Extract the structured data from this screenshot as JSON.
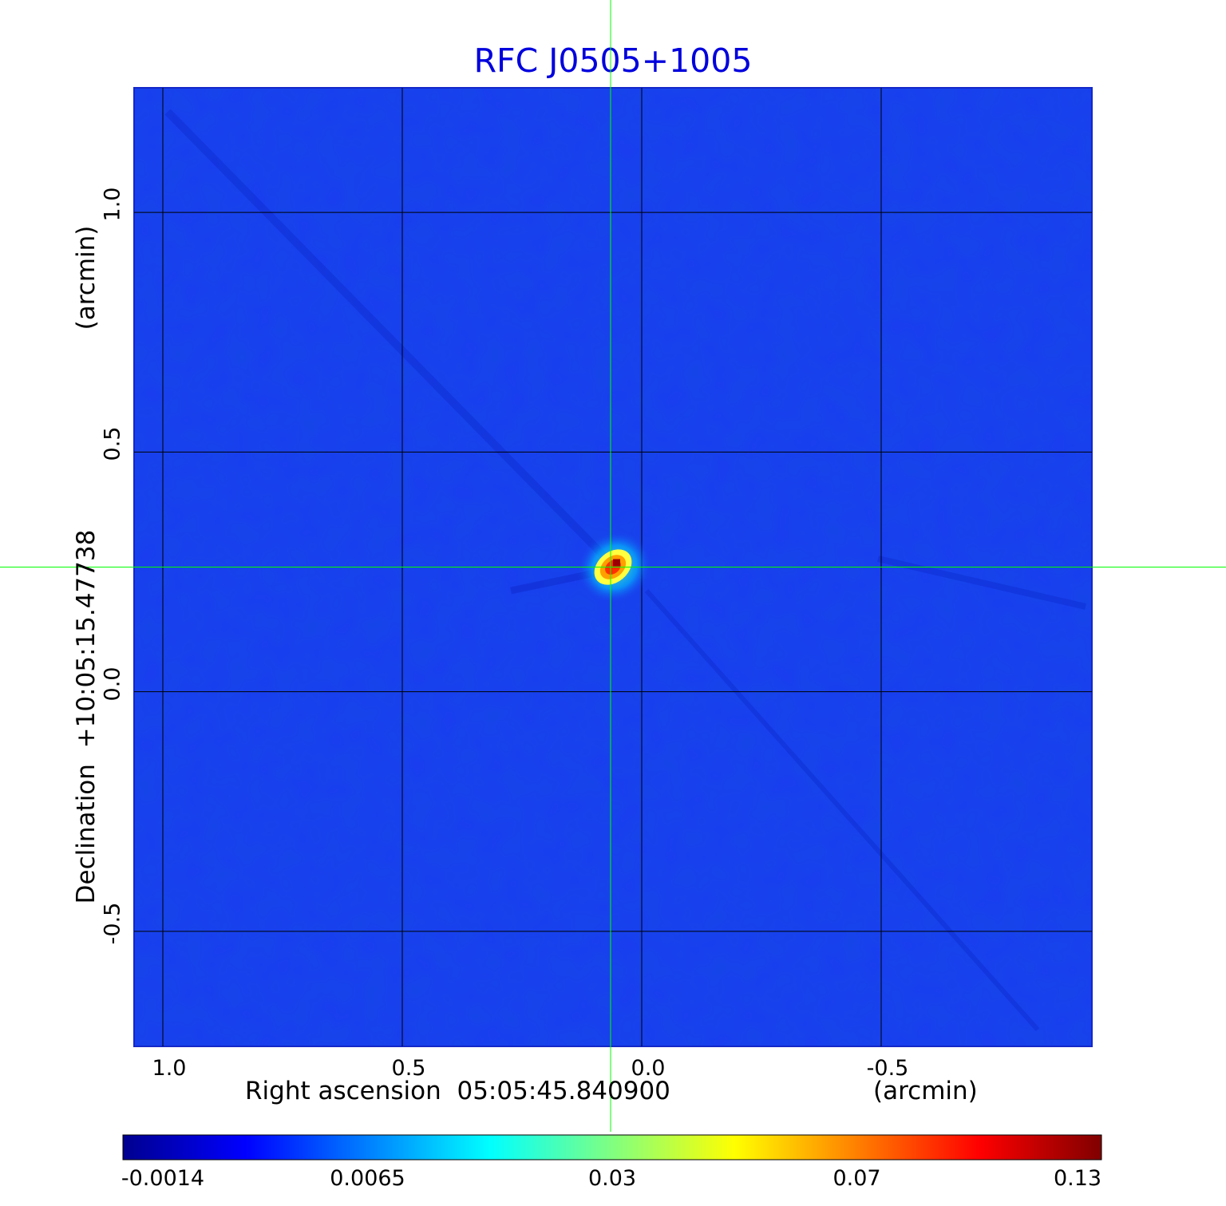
{
  "chart_data": {
    "type": "heatmap",
    "title": "RFC J0505+1005",
    "xlabel": "Right ascension  05:05:45.840900",
    "xlabel_unit": "(arcmin)",
    "ylabel": "Declination  +10:05:15.47738",
    "ylabel_unit": "(arcmin)",
    "x_ticks": [
      "1.0",
      "0.5",
      "0.0",
      "-0.5"
    ],
    "x_tick_values": [
      1.0,
      0.5,
      0.0,
      -0.5
    ],
    "xlim": [
      1.06,
      -0.94
    ],
    "y_ticks": [
      "1.0",
      "0.5",
      "0.0",
      "-0.5"
    ],
    "y_tick_values": [
      1.0,
      0.5,
      0.0,
      -0.5
    ],
    "ylim": [
      -0.74,
      1.26
    ],
    "grid": true,
    "crosshair": {
      "x": 0.065,
      "y": 0.26
    },
    "source_peak": {
      "x": 0.06,
      "y": 0.26,
      "value": 0.13
    },
    "colorbar": {
      "tick_labels": [
        "-0.0014",
        "0.0065",
        "0.03",
        "0.07",
        "0.13"
      ],
      "colormap": "jet"
    },
    "colors": {
      "background_field": "#1a3cf0",
      "title": "#0000dd",
      "crosshair": "#00ff00",
      "grid": "#000000"
    }
  }
}
